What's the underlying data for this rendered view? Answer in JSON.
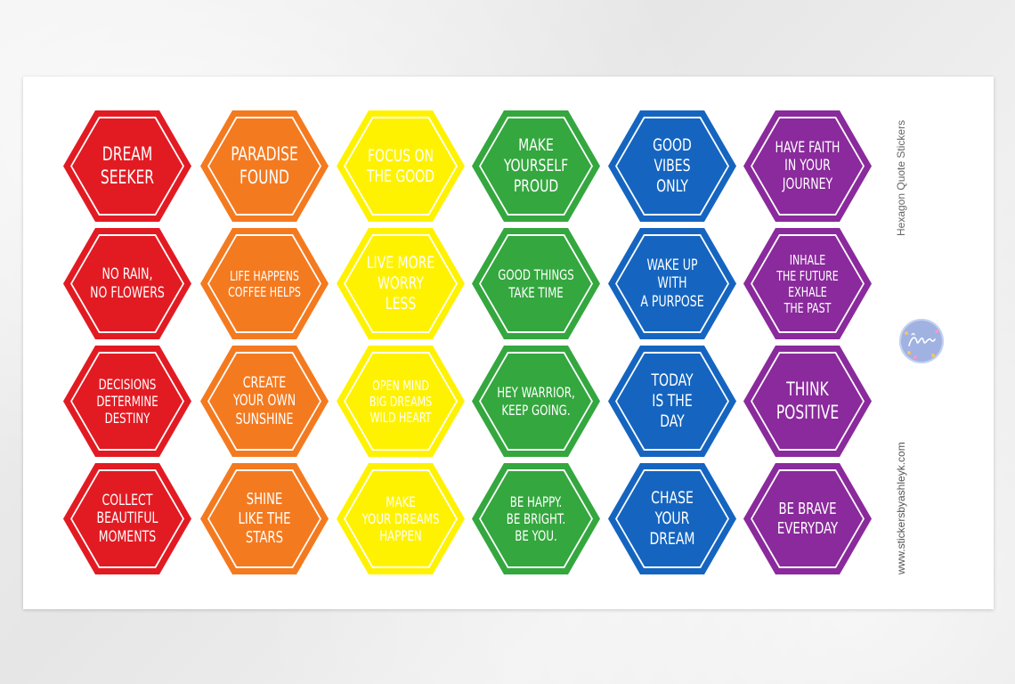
{
  "sheet": {
    "side_title": "Hexagon Quote Stickers",
    "website": "www.stickersbyashleyk.com"
  },
  "colors": {
    "red": "#e21b23",
    "orange": "#f47a20",
    "yellow": "#fff200",
    "green": "#34a73f",
    "blue": "#1565c0",
    "purple": "#8a2a9c"
  },
  "logo": {
    "name": "by-ashleyk-logo-icon"
  },
  "stickers": [
    [
      "DREAM\nSEEKER",
      "PARADISE\nFOUND",
      "FOCUS ON\nTHE GOOD",
      "MAKE\nYOURSELF\nPROUD",
      "GOOD\nVIBES\nONLY",
      "HAVE FAITH\nIN YOUR\nJOURNEY"
    ],
    [
      "NO RAIN,\nNO FLOWERS",
      "LIFE HAPPENS\nCOFFEE HELPS",
      "LIVE MORE\nWORRY LESS",
      "GOOD THINGS\nTAKE TIME",
      "WAKE UP\nWITH\nA PURPOSE",
      "INHALE\nTHE FUTURE\nEXHALE\nTHE PAST"
    ],
    [
      "DECISIONS\nDETERMINE\nDESTINY",
      "CREATE\nYOUR OWN\nSUNSHINE",
      "OPEN MIND\nBIG DREAMS\nWILD HEART",
      "HEY WARRIOR,\nKEEP GOING.",
      "TODAY\nIS THE\nDAY",
      "THINK\nPOSITIVE"
    ],
    [
      "COLLECT\nBEAUTIFUL\nMOMENTS",
      "SHINE\nLIKE THE\nSTARS",
      "MAKE\nYOUR DREAMS\nHAPPEN",
      "BE HAPPY.\nBE BRIGHT.\nBE YOU.",
      "CHASE\nYOUR\nDREAM",
      "BE BRAVE\nEVERYDAY"
    ]
  ]
}
